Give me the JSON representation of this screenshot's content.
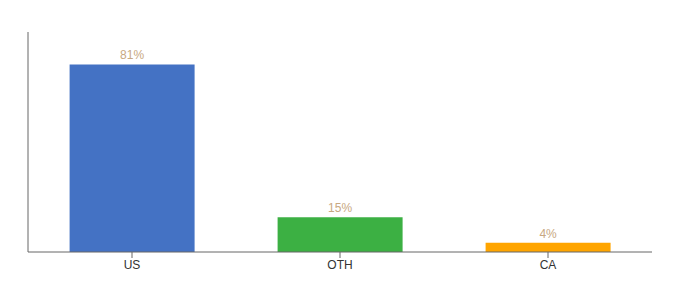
{
  "chart_data": {
    "type": "bar",
    "categories": [
      "US",
      "OTH",
      "CA"
    ],
    "values": [
      81,
      15,
      4
    ],
    "value_labels": [
      "81%",
      "15%",
      "4%"
    ],
    "colors": [
      "#4472C4",
      "#3CB043",
      "#FFA500"
    ],
    "ylim": [
      0,
      95
    ],
    "data_labels": true,
    "tick_labels": "x",
    "grid": false
  }
}
